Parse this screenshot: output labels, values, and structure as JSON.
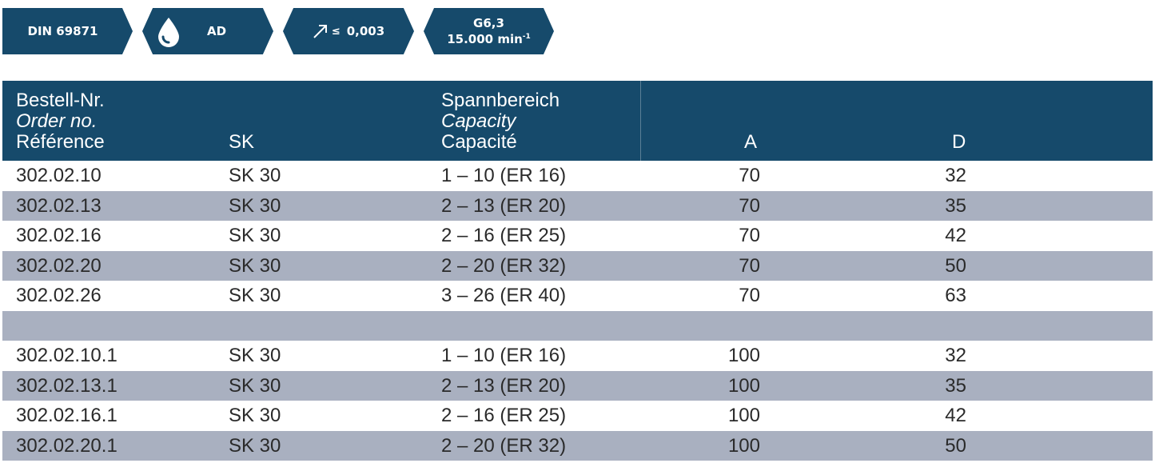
{
  "badges": {
    "standard": "DIN 69871",
    "coolant": {
      "icon": "drop-icon",
      "label": "AD"
    },
    "runout": {
      "icon": "arrow-icon",
      "prefix": "≤",
      "value": "0,003"
    },
    "balance": {
      "grade": "G6,3",
      "speed": "15.000 min",
      "speed_exp": "-1"
    }
  },
  "table": {
    "header": {
      "ref": [
        "Bestell-Nr.",
        "Order no.",
        "Référence"
      ],
      "sk": "SK",
      "capacity": [
        "Spannbereich",
        "Capacity",
        "Capacité"
      ],
      "a": "A",
      "d": "D"
    },
    "rows": [
      {
        "ref": "302.02.10",
        "sk": "SK 30",
        "cap": "1 – 10  (ER 16)",
        "a": "70",
        "d": "32"
      },
      {
        "ref": "302.02.13",
        "sk": "SK 30",
        "cap": "2 – 13  (ER 20)",
        "a": "70",
        "d": "35"
      },
      {
        "ref": "302.02.16",
        "sk": "SK 30",
        "cap": "2 – 16  (ER 25)",
        "a": "70",
        "d": "42"
      },
      {
        "ref": "302.02.20",
        "sk": "SK 30",
        "cap": "2 – 20  (ER 32)",
        "a": "70",
        "d": "50"
      },
      {
        "ref": "302.02.26",
        "sk": "SK 30",
        "cap": "3 – 26  (ER 40)",
        "a": "70",
        "d": "63"
      },
      {
        "ref": "",
        "sk": "",
        "cap": "",
        "a": "",
        "d": ""
      },
      {
        "ref": "302.02.10.1",
        "sk": "SK 30",
        "cap": "1 – 10  (ER 16)",
        "a": "100",
        "d": "32"
      },
      {
        "ref": "302.02.13.1",
        "sk": "SK 30",
        "cap": "2 – 13  (ER 20)",
        "a": "100",
        "d": "35"
      },
      {
        "ref": "302.02.16.1",
        "sk": "SK 30",
        "cap": "2 – 16  (ER 25)",
        "a": "100",
        "d": "42"
      },
      {
        "ref": "302.02.20.1",
        "sk": "SK 30",
        "cap": "2 – 20  (ER 32)",
        "a": "100",
        "d": "50"
      }
    ]
  },
  "colors": {
    "header": "#164a6b",
    "stripe": "#a9b0c0",
    "text": "#2a2a2a"
  }
}
